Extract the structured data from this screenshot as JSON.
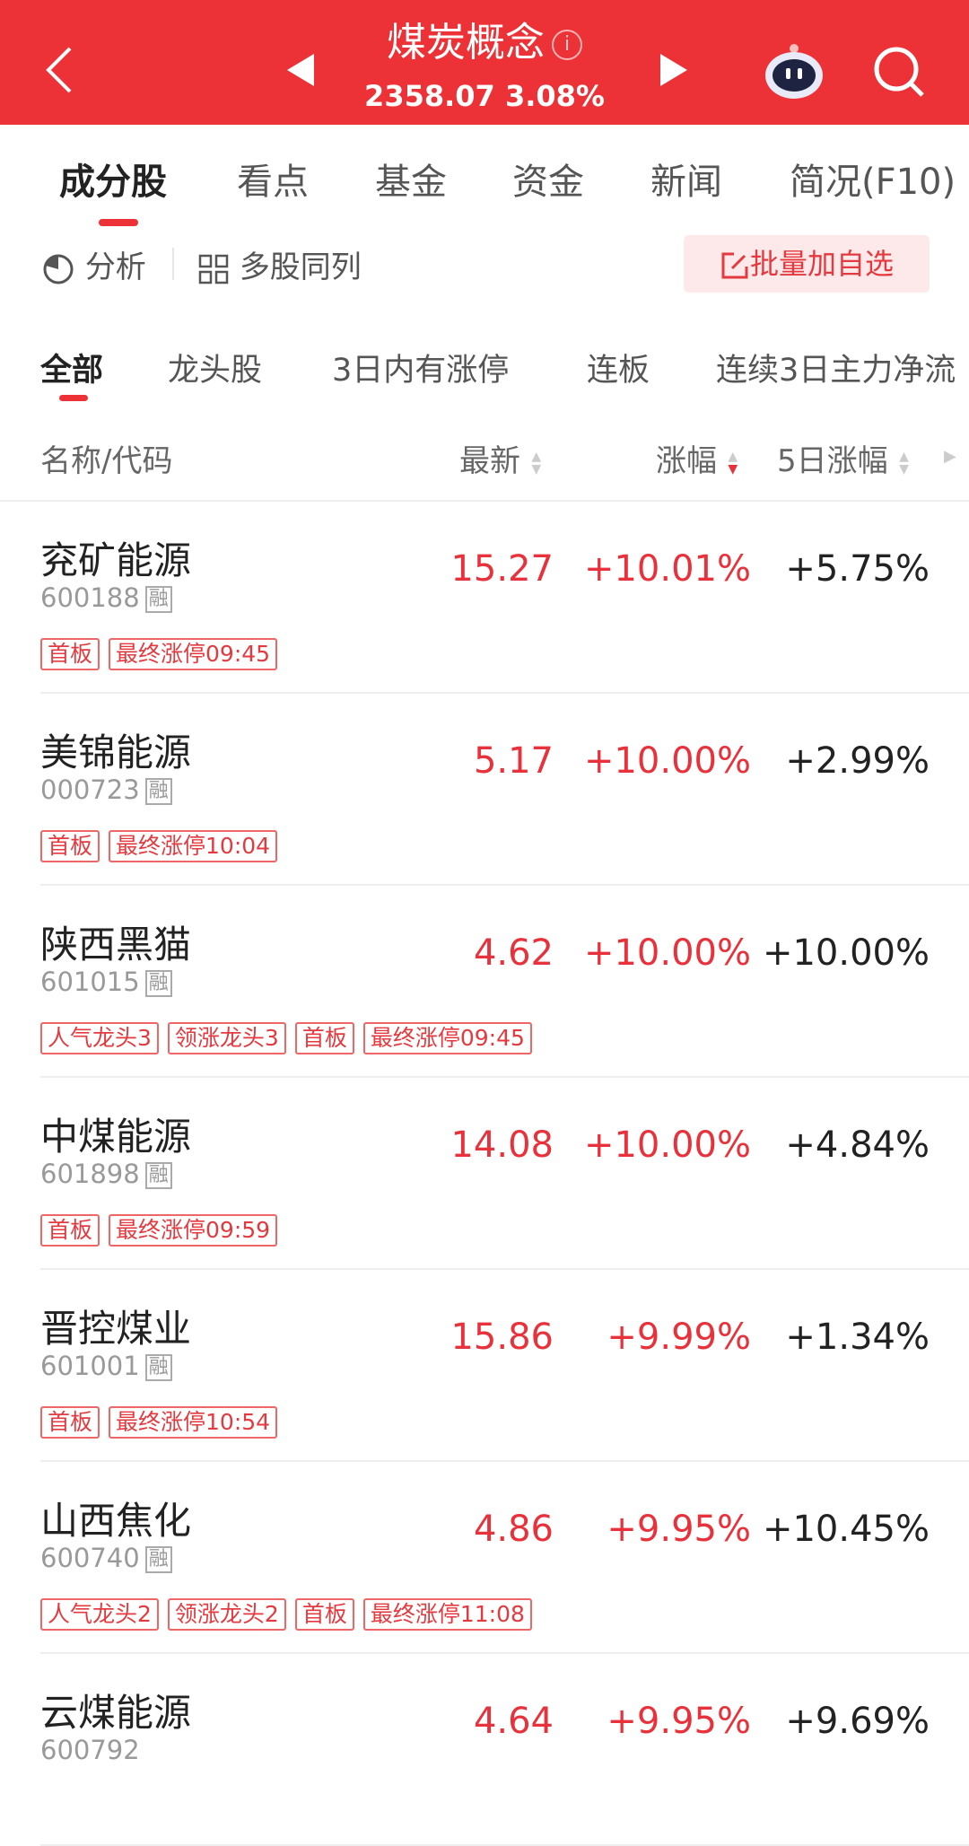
{
  "header": {
    "title": "煤炭概念",
    "index_value": "2358.07",
    "index_change": "3.08%",
    "accent": "#ec3237"
  },
  "tabs": [
    "成分股",
    "看点",
    "基金",
    "资金",
    "新闻",
    "简况(F10)"
  ],
  "tools": {
    "analysis": "分析",
    "multi": "多股同列",
    "batch_add": "批量加自选"
  },
  "subtabs": [
    "全部",
    "龙头股",
    "3日内有涨停",
    "连板",
    "连续3日主力净流"
  ],
  "columns": {
    "name": "名称/代码",
    "latest": "最新",
    "change": "涨幅",
    "change5d": "5日涨幅"
  },
  "rows": [
    {
      "name": "兖矿能源",
      "code": "600188",
      "margin": "融",
      "price": "15.27",
      "pct": "+10.01%",
      "d5": "+5.75%",
      "tags": [
        "首板",
        "最终涨停09:45"
      ]
    },
    {
      "name": "美锦能源",
      "code": "000723",
      "margin": "融",
      "price": "5.17",
      "pct": "+10.00%",
      "d5": "+2.99%",
      "tags": [
        "首板",
        "最终涨停10:04"
      ]
    },
    {
      "name": "陕西黑猫",
      "code": "601015",
      "margin": "融",
      "price": "4.62",
      "pct": "+10.00%",
      "d5": "+10.00%",
      "tags": [
        "人气龙头3",
        "领涨龙头3",
        "首板",
        "最终涨停09:45"
      ]
    },
    {
      "name": "中煤能源",
      "code": "601898",
      "margin": "融",
      "price": "14.08",
      "pct": "+10.00%",
      "d5": "+4.84%",
      "tags": [
        "首板",
        "最终涨停09:59"
      ]
    },
    {
      "name": "晋控煤业",
      "code": "601001",
      "margin": "融",
      "price": "15.86",
      "pct": "+9.99%",
      "d5": "+1.34%",
      "tags": [
        "首板",
        "最终涨停10:54"
      ]
    },
    {
      "name": "山西焦化",
      "code": "600740",
      "margin": "融",
      "price": "4.86",
      "pct": "+9.95%",
      "d5": "+10.45%",
      "tags": [
        "人气龙头2",
        "领涨龙头2",
        "首板",
        "最终涨停11:08"
      ]
    },
    {
      "name": "云煤能源",
      "code": "600792",
      "margin": "",
      "price": "4.64",
      "pct": "+9.95%",
      "d5": "+9.69%",
      "tags": []
    }
  ]
}
